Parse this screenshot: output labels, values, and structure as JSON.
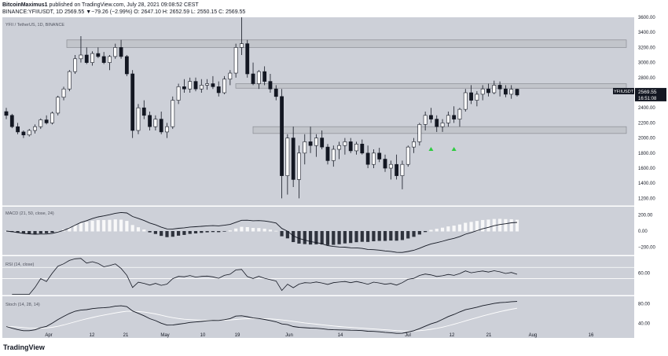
{
  "header": {
    "publisher": "BitcoinMaximus1",
    "published_text": "published on TradingView.com, July 28, 2021 09:08:52 CEST",
    "symbol_line": "BINANCE:YFIIUSDT, 1D",
    "price": "2569.55",
    "change": "▼−79.26 (−2.99%)",
    "ohlc": "O: 2647.10 H: 2652.59 L: 2550.15 C: 2569.55"
  },
  "chart_data": {
    "type": "candlestick",
    "title": "YFII / TetherUS, 1D, BINANCE",
    "series_name": "YFIIUSDT",
    "last_price": 2569.55,
    "last_price_label": "2569.55",
    "countdown": "16:51:08",
    "price_axis": {
      "min": 1100,
      "max": 3600,
      "ticks": [
        1200,
        1400,
        1600,
        1800,
        2000,
        2200,
        2400,
        2600,
        2800,
        3000,
        3200,
        3400,
        3600
      ],
      "tick_labels": [
        "1200.00",
        "1400.00",
        "1600.00",
        "1800.00",
        "2000.00",
        "2200.00",
        "2400.00",
        "2600.00",
        "2800.00",
        "3000.00",
        "3200.00",
        "3400.00",
        "3600.00"
      ]
    },
    "x_axis": {
      "labels": [
        "Apr",
        "12",
        "21",
        "May",
        "10",
        "19",
        "Jun",
        "14",
        "Jul",
        "12",
        "21",
        "Aug",
        "16"
      ]
    },
    "resistance_zones": [
      {
        "low": 3200,
        "high": 3300
      },
      {
        "low": 2660,
        "high": 2720
      },
      {
        "low": 2060,
        "high": 2150
      }
    ],
    "signal_arrows": [
      {
        "candle": 74,
        "color": "#2ecc40"
      },
      {
        "candle": 78,
        "color": "#2ecc40"
      }
    ],
    "candles": [
      [
        2350,
        2400,
        2250,
        2300
      ],
      [
        2300,
        2320,
        2130,
        2150
      ],
      [
        2150,
        2200,
        2050,
        2080
      ],
      [
        2080,
        2100,
        2000,
        2040
      ],
      [
        2040,
        2120,
        2020,
        2100
      ],
      [
        2100,
        2180,
        2060,
        2150
      ],
      [
        2150,
        2260,
        2120,
        2240
      ],
      [
        2240,
        2300,
        2180,
        2200
      ],
      [
        2200,
        2350,
        2180,
        2330
      ],
      [
        2330,
        2560,
        2300,
        2540
      ],
      [
        2540,
        2680,
        2500,
        2650
      ],
      [
        2650,
        2900,
        2620,
        2880
      ],
      [
        2880,
        3100,
        2850,
        3050
      ],
      [
        3050,
        3350,
        3000,
        3100
      ],
      [
        3100,
        3200,
        2980,
        3000
      ],
      [
        3000,
        3150,
        2960,
        3120
      ],
      [
        3120,
        3200,
        3060,
        3080
      ],
      [
        3080,
        3140,
        2980,
        3000
      ],
      [
        3000,
        3100,
        2900,
        3080
      ],
      [
        3080,
        3250,
        3050,
        3200
      ],
      [
        3200,
        3300,
        3050,
        3080
      ],
      [
        3080,
        3100,
        2820,
        2850
      ],
      [
        2850,
        2900,
        2000,
        2100
      ],
      [
        2100,
        2450,
        2050,
        2400
      ],
      [
        2400,
        2500,
        2250,
        2300
      ],
      [
        2300,
        2350,
        2100,
        2150
      ],
      [
        2150,
        2300,
        2100,
        2250
      ],
      [
        2250,
        2350,
        2050,
        2080
      ],
      [
        2080,
        2200,
        2000,
        2150
      ],
      [
        2150,
        2550,
        2120,
        2500
      ],
      [
        2500,
        2720,
        2450,
        2680
      ],
      [
        2680,
        2780,
        2600,
        2650
      ],
      [
        2650,
        2800,
        2600,
        2750
      ],
      [
        2750,
        2800,
        2620,
        2650
      ],
      [
        2650,
        2780,
        2600,
        2700
      ],
      [
        2700,
        2780,
        2640,
        2720
      ],
      [
        2720,
        2820,
        2650,
        2680
      ],
      [
        2680,
        2750,
        2550,
        2600
      ],
      [
        2600,
        2820,
        2580,
        2780
      ],
      [
        2780,
        2900,
        2700,
        2860
      ],
      [
        2860,
        3250,
        2800,
        3200
      ],
      [
        3200,
        4100,
        3100,
        3250
      ],
      [
        3250,
        3300,
        2800,
        2850
      ],
      [
        2850,
        3000,
        2700,
        2720
      ],
      [
        2720,
        2900,
        2650,
        2880
      ],
      [
        2880,
        2950,
        2700,
        2750
      ],
      [
        2750,
        2850,
        2600,
        2650
      ],
      [
        2650,
        2700,
        2500,
        2550
      ],
      [
        2550,
        2650,
        1200,
        1500
      ],
      [
        1500,
        2050,
        1250,
        2000
      ],
      [
        2000,
        2150,
        1350,
        1450
      ],
      [
        1450,
        1900,
        1200,
        1800
      ],
      [
        1800,
        2050,
        1650,
        1950
      ],
      [
        1950,
        2150,
        1800,
        1900
      ],
      [
        1900,
        2050,
        1750,
        2000
      ],
      [
        2000,
        2100,
        1850,
        1880
      ],
      [
        1880,
        1920,
        1650,
        1700
      ],
      [
        1700,
        1900,
        1620,
        1850
      ],
      [
        1850,
        1950,
        1720,
        1900
      ],
      [
        1900,
        2000,
        1780,
        1950
      ],
      [
        1950,
        2000,
        1800,
        1830
      ],
      [
        1830,
        1950,
        1780,
        1920
      ],
      [
        1920,
        1980,
        1780,
        1800
      ],
      [
        1800,
        1900,
        1600,
        1650
      ],
      [
        1650,
        1850,
        1600,
        1800
      ],
      [
        1800,
        1870,
        1680,
        1720
      ],
      [
        1720,
        1780,
        1550,
        1600
      ],
      [
        1600,
        1700,
        1450,
        1650
      ],
      [
        1650,
        1780,
        1450,
        1500
      ],
      [
        1500,
        1700,
        1320,
        1650
      ],
      [
        1650,
        1900,
        1620,
        1880
      ],
      [
        1880,
        2000,
        1800,
        1950
      ],
      [
        1950,
        2200,
        1900,
        2180
      ],
      [
        2180,
        2350,
        2100,
        2300
      ],
      [
        2300,
        2400,
        2200,
        2250
      ],
      [
        2250,
        2300,
        2080,
        2150
      ],
      [
        2150,
        2250,
        2080,
        2200
      ],
      [
        2200,
        2350,
        2150,
        2300
      ],
      [
        2300,
        2420,
        2200,
        2250
      ],
      [
        2250,
        2400,
        2150,
        2380
      ],
      [
        2380,
        2650,
        2350,
        2600
      ],
      [
        2600,
        2700,
        2450,
        2500
      ],
      [
        2500,
        2620,
        2420,
        2580
      ],
      [
        2580,
        2700,
        2500,
        2650
      ],
      [
        2650,
        2720,
        2550,
        2600
      ],
      [
        2600,
        2760,
        2580,
        2700
      ],
      [
        2700,
        2750,
        2550,
        2650
      ],
      [
        2650,
        2700,
        2540,
        2580
      ],
      [
        2580,
        2700,
        2520,
        2647
      ],
      [
        2647,
        2653,
        2550,
        2570
      ]
    ],
    "macd": {
      "label": "MACD (21, 50, close, 24)",
      "ticks": [
        200,
        0,
        -200
      ],
      "tick_labels": [
        "200.00",
        "0.00",
        "−200.00"
      ]
    },
    "rsi": {
      "label": "RSI (14, close)",
      "ticks": [
        60
      ],
      "tick_labels": [
        "60.00"
      ],
      "levels": [
        70,
        50
      ]
    },
    "stoch": {
      "label": "Stoch (14, 28, 14)",
      "ticks": [
        80,
        40
      ],
      "tick_labels": [
        "80.00",
        "40.00"
      ]
    }
  },
  "colors": {
    "panel_bg": "#cdd0d8",
    "bull": "#ffffff",
    "bear": "#131722",
    "zone": "#c2c5cb",
    "last_price_bg": "#131722",
    "arrow": "#2ecc40"
  },
  "footer": {
    "brand": "TradingView"
  }
}
